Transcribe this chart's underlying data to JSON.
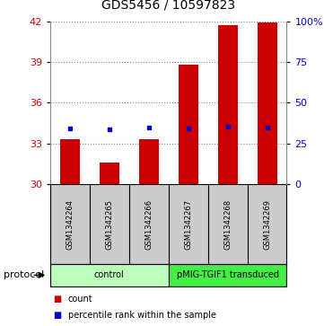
{
  "title": "GDS5456 / 10597823",
  "samples": [
    "GSM1342264",
    "GSM1342265",
    "GSM1342266",
    "GSM1342267",
    "GSM1342268",
    "GSM1342269"
  ],
  "counts": [
    33.3,
    31.6,
    33.3,
    38.8,
    41.7,
    41.9
  ],
  "percentile_ranks": [
    34.2,
    33.5,
    34.5,
    34.1,
    35.2,
    35.0
  ],
  "ylim_left": [
    30,
    42
  ],
  "ylim_right": [
    0,
    100
  ],
  "yticks_left": [
    30,
    33,
    36,
    39,
    42
  ],
  "yticks_right": [
    0,
    25,
    50,
    75,
    100
  ],
  "ytick_labels_right": [
    "0",
    "25",
    "50",
    "75",
    "100%"
  ],
  "groups": [
    {
      "label": "control",
      "indices": [
        0,
        1,
        2
      ],
      "color": "#bbffbb"
    },
    {
      "label": "pMIG-TGIF1 transduced",
      "indices": [
        3,
        4,
        5
      ],
      "color": "#44ee44"
    }
  ],
  "bar_color": "#cc0000",
  "dot_color": "#0000cc",
  "bar_width": 0.5,
  "base_value": 30,
  "legend_count_label": "count",
  "legend_pct_label": "percentile rank within the sample",
  "protocol_label": "protocol",
  "grid_color": "#888888",
  "background_plot": "#ffffff",
  "background_sample_row": "#cccccc",
  "left_ax_color": "#cc0000",
  "right_ax_color": "#0000cc",
  "title_fontsize": 10,
  "tick_fontsize": 8,
  "sample_fontsize": 6,
  "group_fontsize": 7,
  "legend_fontsize": 7
}
